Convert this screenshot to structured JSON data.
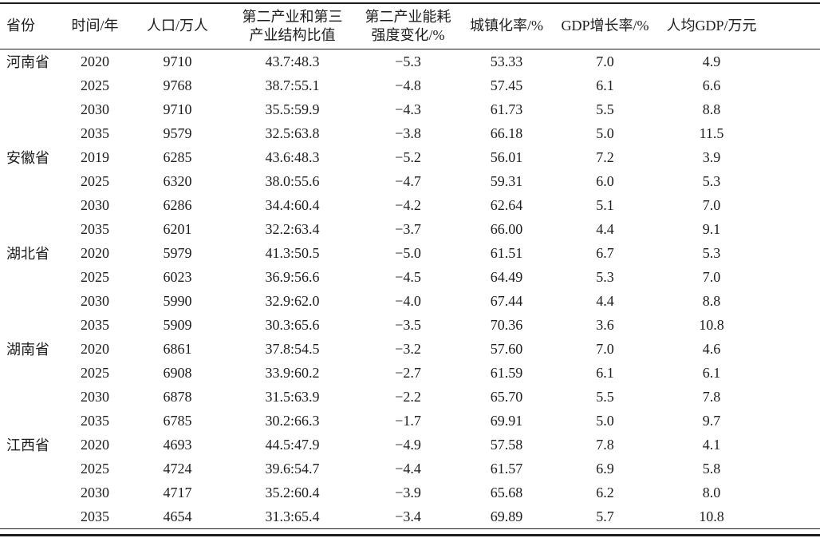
{
  "table": {
    "columns": [
      {
        "key": "province",
        "label": "省份"
      },
      {
        "key": "year",
        "label": "时间/年"
      },
      {
        "key": "population",
        "label": "人口/万人"
      },
      {
        "key": "industry_structure",
        "label": "第二产业和第三\n产业结构比值"
      },
      {
        "key": "energy_intensity_change",
        "label": "第二产业能耗\n强度变化/%"
      },
      {
        "key": "urbanization_rate",
        "label": "城镇化率/%"
      },
      {
        "key": "gdp_growth_rate",
        "label": "GDP增长率/%"
      },
      {
        "key": "gdp_per_capita",
        "label": "人均GDP/万元"
      }
    ],
    "groups": [
      {
        "province": "河南省",
        "rows": [
          [
            "2020",
            "9710",
            "43.7:48.3",
            "−5.3",
            "53.33",
            "7.0",
            "4.9"
          ],
          [
            "2025",
            "9768",
            "38.7:55.1",
            "−4.8",
            "57.45",
            "6.1",
            "6.6"
          ],
          [
            "2030",
            "9710",
            "35.5:59.9",
            "−4.3",
            "61.73",
            "5.5",
            "8.8"
          ],
          [
            "2035",
            "9579",
            "32.5:63.8",
            "−3.8",
            "66.18",
            "5.0",
            "11.5"
          ]
        ]
      },
      {
        "province": "安徽省",
        "rows": [
          [
            "2019",
            "6285",
            "43.6:48.3",
            "−5.2",
            "56.01",
            "7.2",
            "3.9"
          ],
          [
            "2025",
            "6320",
            "38.0:55.6",
            "−4.7",
            "59.31",
            "6.0",
            "5.3"
          ],
          [
            "2030",
            "6286",
            "34.4:60.4",
            "−4.2",
            "62.64",
            "5.1",
            "7.0"
          ],
          [
            "2035",
            "6201",
            "32.2:63.4",
            "−3.7",
            "66.00",
            "4.4",
            "9.1"
          ]
        ]
      },
      {
        "province": "湖北省",
        "rows": [
          [
            "2020",
            "5979",
            "41.3:50.5",
            "−5.0",
            "61.51",
            "6.7",
            "5.3"
          ],
          [
            "2025",
            "6023",
            "36.9:56.6",
            "−4.5",
            "64.49",
            "5.3",
            "7.0"
          ],
          [
            "2030",
            "5990",
            "32.9:62.0",
            "−4.0",
            "67.44",
            "4.4",
            "8.8"
          ],
          [
            "2035",
            "5909",
            "30.3:65.6",
            "−3.5",
            "70.36",
            "3.6",
            "10.8"
          ]
        ]
      },
      {
        "province": "湖南省",
        "rows": [
          [
            "2020",
            "6861",
            "37.8:54.5",
            "−3.2",
            "57.60",
            "7.0",
            "4.6"
          ],
          [
            "2025",
            "6908",
            "33.9:60.2",
            "−2.7",
            "61.59",
            "6.1",
            "6.1"
          ],
          [
            "2030",
            "6878",
            "31.5:63.9",
            "−2.2",
            "65.70",
            "5.5",
            "7.8"
          ],
          [
            "2035",
            "6785",
            "30.2:66.3",
            "−1.7",
            "69.91",
            "5.0",
            "9.7"
          ]
        ]
      },
      {
        "province": "江西省",
        "rows": [
          [
            "2020",
            "4693",
            "44.5:47.9",
            "−4.9",
            "57.58",
            "7.8",
            "4.1"
          ],
          [
            "2025",
            "4724",
            "39.6:54.7",
            "−4.4",
            "61.57",
            "6.9",
            "5.8"
          ],
          [
            "2030",
            "4717",
            "35.2:60.4",
            "−3.9",
            "65.68",
            "6.2",
            "8.0"
          ],
          [
            "2035",
            "4654",
            "31.3:65.4",
            "−3.4",
            "69.89",
            "5.7",
            "10.8"
          ]
        ]
      }
    ]
  },
  "colors": {
    "rule": "#1c1c1c",
    "text": "#1d1d1d",
    "background": "#ffffff"
  }
}
